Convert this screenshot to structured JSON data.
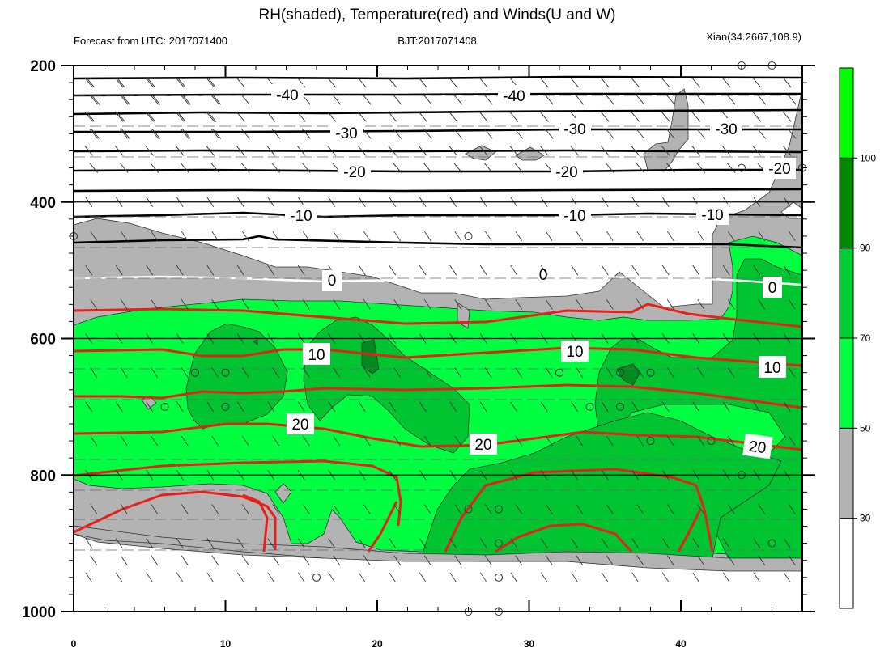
{
  "chart_data": {
    "type": "contour",
    "title": "RH(shaded), Temperature(red) and Winds(U and W)",
    "subtitle_left": "Forecast from UTC: 2017071400",
    "subtitle_center": "BJT:2017071408",
    "subtitle_right": "Xian(34.2667,108.9)",
    "xlabel": "",
    "ylabel": "",
    "x_ticks": [
      0,
      10,
      20,
      30,
      40
    ],
    "xlim": [
      0,
      48
    ],
    "y_ticks": [
      200,
      400,
      600,
      800,
      1000
    ],
    "ylim": [
      200,
      1000
    ],
    "y_inverted": true,
    "colorbar": {
      "levels": [
        30,
        50,
        70,
        90,
        100
      ],
      "colors": [
        "#ffffff",
        "#b3b3b3",
        "#00ff41",
        "#00cc33",
        "#008800",
        "#00ff00"
      ]
    },
    "rh_fill_colors": {
      "gray": "#b3b3b3",
      "green": "#00ff41",
      "mid_green": "#00c530",
      "dark_green": "#008a20"
    },
    "black_isotherm_labels": [
      "-40",
      "-40",
      "-30",
      "-30",
      "-30",
      "-20",
      "-20",
      "-20",
      "-10",
      "-10",
      "-10"
    ],
    "white_isotherm_labels": [
      "0",
      "0",
      "0"
    ],
    "red_isotherm_labels": [
      "10",
      "10",
      "10",
      "20",
      "20",
      "20"
    ],
    "temperature_line_color": "#e8201a",
    "zero_isotherm_color": "#ffffff",
    "wind_pressure_levels": [
      225,
      250,
      275,
      300,
      325,
      350,
      400,
      450,
      500,
      550,
      600,
      650,
      700,
      750,
      800,
      850,
      900,
      925,
      950
    ],
    "calm_marker_points": [
      [
        44,
        200
      ],
      [
        46,
        200
      ],
      [
        44,
        350
      ],
      [
        46,
        350
      ],
      [
        48,
        350
      ],
      [
        26,
        450
      ],
      [
        0,
        450
      ],
      [
        8,
        650
      ],
      [
        10,
        650
      ],
      [
        6,
        700
      ],
      [
        10,
        700
      ],
      [
        32,
        650
      ],
      [
        36,
        650
      ],
      [
        38,
        650
      ],
      [
        34,
        700
      ],
      [
        36,
        700
      ],
      [
        38,
        750
      ],
      [
        42,
        750
      ],
      [
        44,
        800
      ],
      [
        26,
        850
      ],
      [
        28,
        850
      ],
      [
        28,
        900
      ],
      [
        46,
        900
      ],
      [
        16,
        950
      ],
      [
        28,
        950
      ],
      [
        26,
        1000
      ],
      [
        28,
        1000
      ]
    ]
  }
}
